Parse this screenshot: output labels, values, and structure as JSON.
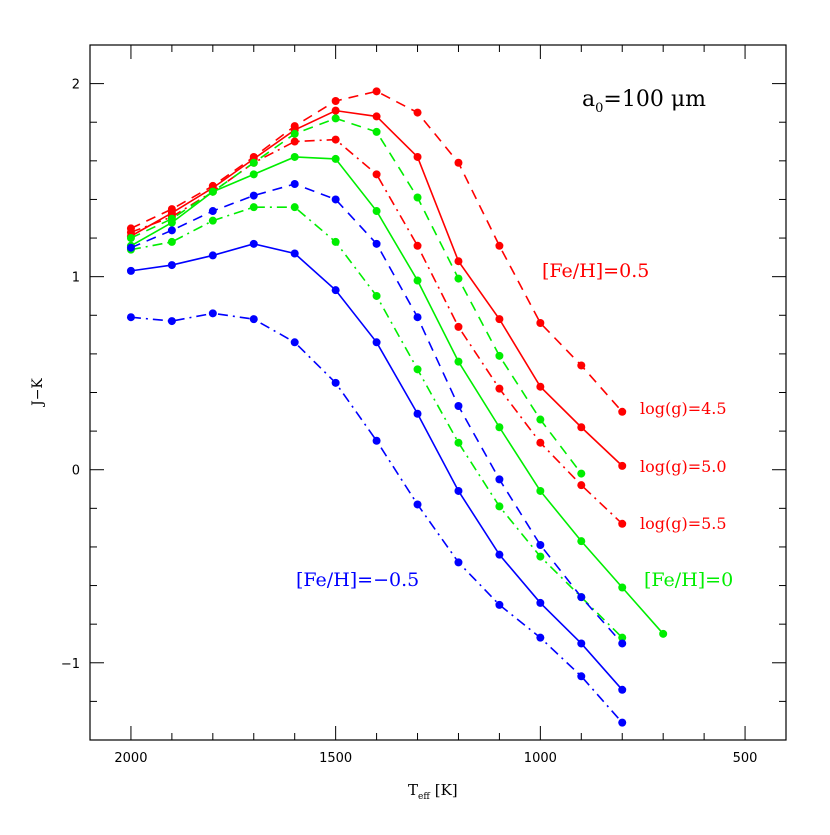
{
  "chart_data": {
    "type": "line",
    "xlabel": "T",
    "xlabel_sub": "eff",
    "xlabel_unit": "[K]",
    "ylabel": "J−K",
    "xlim": [
      2100,
      400
    ],
    "ylim": [
      -1.4,
      2.2
    ],
    "x_reversed": true,
    "x_ticks": [
      2000,
      1500,
      1000,
      500
    ],
    "y_ticks": [
      -1,
      0,
      1,
      2
    ],
    "grid": false,
    "annotations": {
      "grain_size": "a",
      "grain_size_sub": "0",
      "grain_size_value": "=100 μm",
      "feh_plus": "[Fe/H]=0.5",
      "feh_zero": "[Fe/H]=0",
      "feh_minus": "[Fe/H]=−0.5",
      "logg_45": "log(g)=4.5",
      "logg_50": "log(g)=5.0",
      "logg_55": "log(g)=5.5"
    },
    "series": [
      {
        "feh": 0.5,
        "logg": 4.5,
        "color": "#ff0000",
        "style": "dashed",
        "x": [
          2000,
          1900,
          1800,
          1700,
          1600,
          1500,
          1400,
          1300,
          1200,
          1100,
          1000,
          900,
          800
        ],
        "y": [
          1.25,
          1.35,
          1.47,
          1.62,
          1.78,
          1.91,
          1.96,
          1.85,
          1.59,
          1.16,
          0.76,
          0.54,
          0.3
        ]
      },
      {
        "feh": 0.5,
        "logg": 5.0,
        "color": "#ff0000",
        "style": "solid",
        "x": [
          2000,
          1900,
          1800,
          1700,
          1600,
          1500,
          1400,
          1300,
          1200,
          1100,
          1000,
          900,
          800
        ],
        "y": [
          1.21,
          1.33,
          1.46,
          1.61,
          1.76,
          1.86,
          1.83,
          1.62,
          1.08,
          0.78,
          0.43,
          0.22,
          0.02
        ]
      },
      {
        "feh": 0.5,
        "logg": 5.5,
        "color": "#ff0000",
        "style": "dashdot",
        "x": [
          2000,
          1900,
          1800,
          1700,
          1600,
          1500,
          1400,
          1300,
          1200,
          1100,
          1000,
          900,
          800
        ],
        "y": [
          1.23,
          1.31,
          1.44,
          1.59,
          1.7,
          1.71,
          1.53,
          1.16,
          0.74,
          0.42,
          0.14,
          -0.08,
          -0.28
        ]
      },
      {
        "feh": 0,
        "logg": 4.5,
        "color": "#00ee00",
        "style": "dashed",
        "x": [
          2000,
          1900,
          1800,
          1700,
          1600,
          1500,
          1400,
          1300,
          1200,
          1100,
          1000,
          900
        ],
        "y": [
          1.2,
          1.3,
          1.44,
          1.59,
          1.74,
          1.82,
          1.75,
          1.41,
          0.99,
          0.59,
          0.26,
          -0.02
        ]
      },
      {
        "feh": 0,
        "logg": 5.0,
        "color": "#00ee00",
        "style": "solid",
        "x": [
          2000,
          1900,
          1800,
          1700,
          1600,
          1500,
          1400,
          1300,
          1200,
          1100,
          1000,
          900,
          800,
          700
        ],
        "y": [
          1.16,
          1.28,
          1.44,
          1.53,
          1.62,
          1.61,
          1.34,
          0.98,
          0.56,
          0.22,
          -0.11,
          -0.37,
          -0.61,
          -0.85
        ]
      },
      {
        "feh": 0,
        "logg": 5.5,
        "color": "#00ee00",
        "style": "dashdot",
        "x": [
          2000,
          1900,
          1800,
          1700,
          1600,
          1500,
          1400,
          1300,
          1200,
          1100,
          1000,
          900,
          800
        ],
        "y": [
          1.14,
          1.18,
          1.29,
          1.36,
          1.36,
          1.18,
          0.9,
          0.52,
          0.14,
          -0.19,
          -0.45,
          -0.66,
          -0.87
        ]
      },
      {
        "feh": -0.5,
        "logg": 4.5,
        "color": "#0000ff",
        "style": "dashed",
        "x": [
          2000,
          1900,
          1800,
          1700,
          1600,
          1500,
          1400,
          1300,
          1200,
          1100,
          1000,
          900,
          800
        ],
        "y": [
          1.15,
          1.24,
          1.34,
          1.42,
          1.48,
          1.4,
          1.17,
          0.79,
          0.33,
          -0.05,
          -0.39,
          -0.66,
          -0.9
        ]
      },
      {
        "feh": -0.5,
        "logg": 5.0,
        "color": "#0000ff",
        "style": "solid",
        "x": [
          2000,
          1900,
          1800,
          1700,
          1600,
          1500,
          1400,
          1300,
          1200,
          1100,
          1000,
          900,
          800
        ],
        "y": [
          1.03,
          1.06,
          1.11,
          1.17,
          1.12,
          0.93,
          0.66,
          0.29,
          -0.11,
          -0.44,
          -0.69,
          -0.9,
          -1.14
        ]
      },
      {
        "feh": -0.5,
        "logg": 5.5,
        "color": "#0000ff",
        "style": "dashdot",
        "x": [
          2000,
          1900,
          1800,
          1700,
          1600,
          1500,
          1400,
          1300,
          1200,
          1100,
          1000,
          900,
          800
        ],
        "y": [
          0.79,
          0.77,
          0.81,
          0.78,
          0.66,
          0.45,
          0.15,
          -0.18,
          -0.48,
          -0.7,
          -0.87,
          -1.07,
          -1.31
        ]
      }
    ]
  }
}
